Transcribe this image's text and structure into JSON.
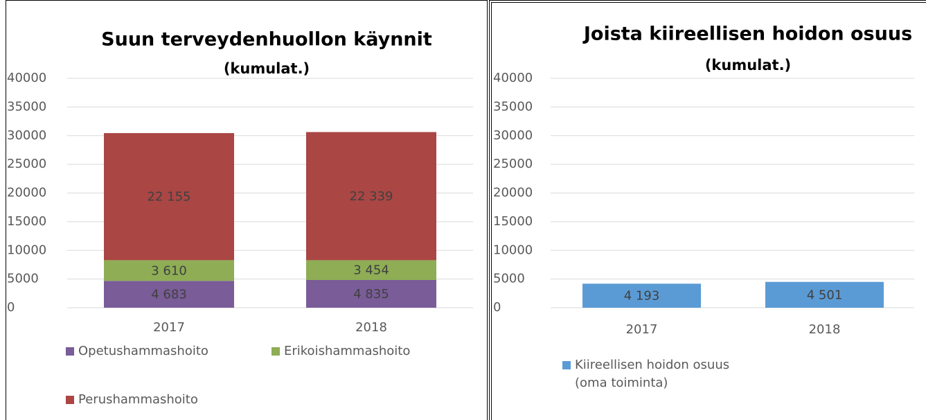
{
  "chart_data": [
    {
      "type": "bar",
      "stacked": true,
      "title": "Suun terveydenhuollon käynnit",
      "subtitle": "(kumulat.)",
      "categories": [
        "2017",
        "2018"
      ],
      "series": [
        {
          "name": "Opetushammashoito",
          "color": "#7a5c98",
          "values": [
            4683,
            4835
          ],
          "value_labels": [
            "4 683",
            "4 835"
          ]
        },
        {
          "name": "Erikoishammashoito",
          "color": "#8ead55",
          "values": [
            3610,
            3454
          ],
          "value_labels": [
            "3 610",
            "3 454"
          ]
        },
        {
          "name": "Perushammashoito",
          "color": "#aa4644",
          "values": [
            22155,
            22339
          ],
          "value_labels": [
            "22 155",
            "22 339"
          ]
        }
      ],
      "ylim": [
        0,
        40000
      ],
      "yticks": [
        0,
        5000,
        10000,
        15000,
        20000,
        25000,
        30000,
        35000,
        40000
      ],
      "grid": true,
      "legend": "bottom"
    },
    {
      "type": "bar",
      "title": "Joista kiireellisen hoidon osuus",
      "subtitle": "(kumulat.)",
      "categories": [
        "2017",
        "2018"
      ],
      "series": [
        {
          "name": "Kiireellisen hoidon osuus (oma toiminta)",
          "color": "#5b9bd5",
          "values": [
            4193,
            4501
          ],
          "value_labels": [
            "4 193",
            "4 501"
          ]
        }
      ],
      "ylim": [
        0,
        40000
      ],
      "yticks": [
        0,
        5000,
        10000,
        15000,
        20000,
        25000,
        30000,
        35000,
        40000
      ],
      "grid": true,
      "legend": "bottom"
    }
  ]
}
